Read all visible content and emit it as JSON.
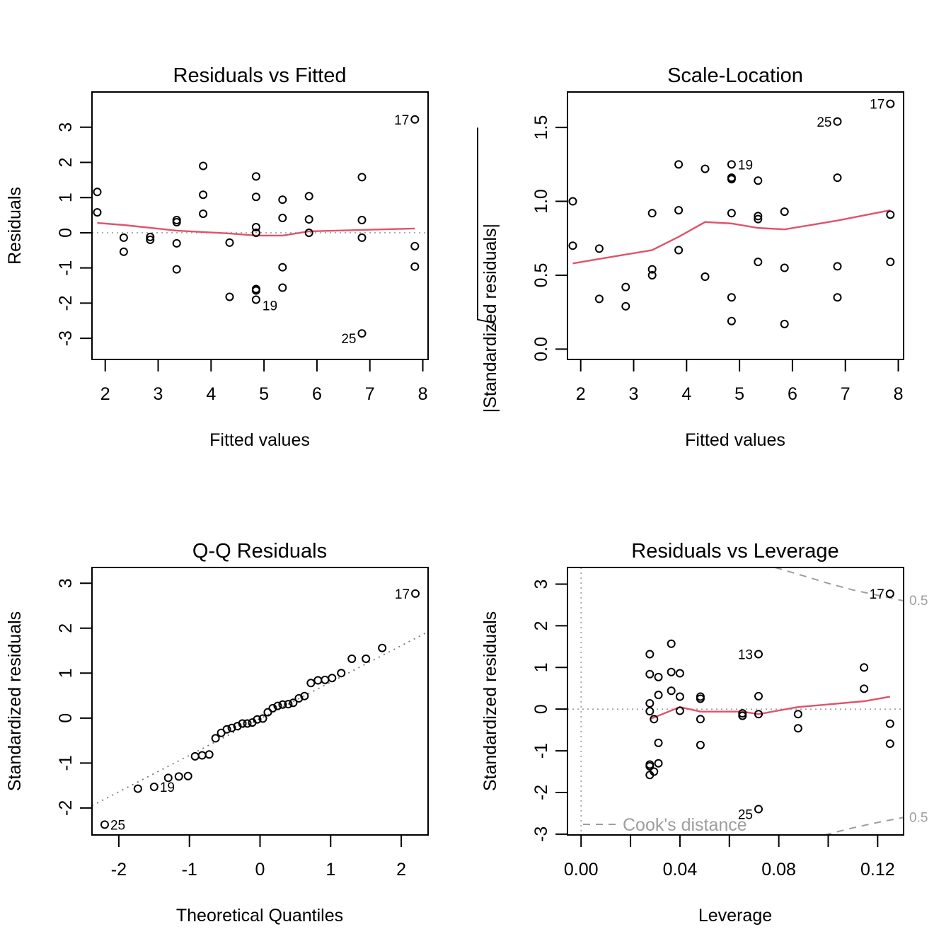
{
  "figure": {
    "layout": "2x2",
    "smoother_color": "#DF536B",
    "point_color": "#000000",
    "reference_color": "#9E9E9E"
  },
  "chart_data": [
    {
      "id": "residuals-vs-fitted",
      "type": "scatter",
      "title": "Residuals vs Fitted",
      "xlabel": "Fitted values",
      "ylabel": "Residuals",
      "xlim": [
        1.75,
        8.1
      ],
      "ylim": [
        -3.6,
        4.0
      ],
      "xticks": [
        2,
        3,
        4,
        5,
        6,
        7,
        8
      ],
      "yticks": [
        -3,
        -2,
        -1,
        0,
        1,
        2,
        3
      ],
      "reference_line": {
        "type": "horizontal",
        "y": 0,
        "style": "dotted"
      },
      "points": [
        {
          "x": 1.85,
          "y": 1.16
        },
        {
          "x": 1.85,
          "y": 0.58
        },
        {
          "x": 2.35,
          "y": -0.14
        },
        {
          "x": 2.35,
          "y": -0.54
        },
        {
          "x": 2.85,
          "y": -0.12
        },
        {
          "x": 2.85,
          "y": -0.2
        },
        {
          "x": 3.35,
          "y": 0.36
        },
        {
          "x": 3.35,
          "y": 0.3
        },
        {
          "x": 3.35,
          "y": -0.3
        },
        {
          "x": 3.35,
          "y": -1.04
        },
        {
          "x": 3.85,
          "y": 1.9
        },
        {
          "x": 3.85,
          "y": 1.08
        },
        {
          "x": 3.85,
          "y": 0.54
        },
        {
          "x": 4.35,
          "y": -0.28
        },
        {
          "x": 4.35,
          "y": -1.82
        },
        {
          "x": 4.85,
          "y": 1.6
        },
        {
          "x": 4.85,
          "y": 1.02
        },
        {
          "x": 4.85,
          "y": 0.16
        },
        {
          "x": 4.85,
          "y": 0.0
        },
        {
          "x": 4.85,
          "y": -1.6
        },
        {
          "x": 4.85,
          "y": -1.64
        },
        {
          "x": 4.85,
          "y": -1.9,
          "label": "19"
        },
        {
          "x": 5.35,
          "y": 0.94
        },
        {
          "x": 5.35,
          "y": 0.42
        },
        {
          "x": 5.35,
          "y": -0.98
        },
        {
          "x": 5.35,
          "y": -1.56
        },
        {
          "x": 5.85,
          "y": 1.04
        },
        {
          "x": 5.85,
          "y": 0.38
        },
        {
          "x": 5.85,
          "y": 0.0
        },
        {
          "x": 6.85,
          "y": 1.58
        },
        {
          "x": 6.85,
          "y": 0.36
        },
        {
          "x": 6.85,
          "y": -0.14
        },
        {
          "x": 6.85,
          "y": -2.86,
          "label": "25"
        },
        {
          "x": 7.85,
          "y": 3.22,
          "label": "17"
        },
        {
          "x": 7.85,
          "y": -0.38
        },
        {
          "x": 7.85,
          "y": -0.96
        }
      ],
      "smoother": [
        {
          "x": 1.85,
          "y": 0.28
        },
        {
          "x": 2.35,
          "y": 0.22
        },
        {
          "x": 2.85,
          "y": 0.14
        },
        {
          "x": 3.35,
          "y": 0.06
        },
        {
          "x": 3.85,
          "y": 0.02
        },
        {
          "x": 4.35,
          "y": -0.02
        },
        {
          "x": 4.85,
          "y": -0.08
        },
        {
          "x": 5.35,
          "y": -0.08
        },
        {
          "x": 5.85,
          "y": 0.04
        },
        {
          "x": 6.85,
          "y": 0.08
        },
        {
          "x": 7.85,
          "y": 0.12
        }
      ]
    },
    {
      "id": "scale-location",
      "type": "scatter",
      "title": "Scale-Location",
      "xlabel": "Fitted values",
      "ylabel": "√|Standardized residuals|",
      "xlim": [
        1.75,
        8.1
      ],
      "ylim": [
        -0.07,
        1.74
      ],
      "xticks": [
        2,
        3,
        4,
        5,
        6,
        7,
        8
      ],
      "yticks": [
        "0.0",
        "0.5",
        "1.0",
        "1.5"
      ],
      "points": [
        {
          "x": 1.85,
          "y": 1.0
        },
        {
          "x": 1.85,
          "y": 0.7
        },
        {
          "x": 2.35,
          "y": 0.68
        },
        {
          "x": 2.35,
          "y": 0.34
        },
        {
          "x": 2.85,
          "y": 0.42
        },
        {
          "x": 2.85,
          "y": 0.29
        },
        {
          "x": 3.35,
          "y": 0.92
        },
        {
          "x": 3.35,
          "y": 0.54
        },
        {
          "x": 3.35,
          "y": 0.5
        },
        {
          "x": 3.85,
          "y": 1.25
        },
        {
          "x": 3.85,
          "y": 0.94
        },
        {
          "x": 3.85,
          "y": 0.67
        },
        {
          "x": 4.35,
          "y": 1.22
        },
        {
          "x": 4.35,
          "y": 0.49
        },
        {
          "x": 4.85,
          "y": 1.25,
          "label": "19"
        },
        {
          "x": 4.85,
          "y": 1.16
        },
        {
          "x": 4.85,
          "y": 1.15
        },
        {
          "x": 4.85,
          "y": 0.92
        },
        {
          "x": 4.85,
          "y": 0.35
        },
        {
          "x": 4.85,
          "y": 0.19
        },
        {
          "x": 5.35,
          "y": 1.14
        },
        {
          "x": 5.35,
          "y": 0.9
        },
        {
          "x": 5.35,
          "y": 0.88
        },
        {
          "x": 5.35,
          "y": 0.59
        },
        {
          "x": 5.85,
          "y": 0.93
        },
        {
          "x": 5.85,
          "y": 0.55
        },
        {
          "x": 5.85,
          "y": 0.17
        },
        {
          "x": 6.85,
          "y": 1.54,
          "label": "25"
        },
        {
          "x": 6.85,
          "y": 1.16
        },
        {
          "x": 6.85,
          "y": 0.56
        },
        {
          "x": 6.85,
          "y": 0.35
        },
        {
          "x": 7.85,
          "y": 1.66,
          "label": "17"
        },
        {
          "x": 7.85,
          "y": 0.91
        },
        {
          "x": 7.85,
          "y": 0.59
        }
      ],
      "smoother": [
        {
          "x": 1.85,
          "y": 0.58
        },
        {
          "x": 2.35,
          "y": 0.61
        },
        {
          "x": 2.85,
          "y": 0.64
        },
        {
          "x": 3.35,
          "y": 0.67
        },
        {
          "x": 3.85,
          "y": 0.76
        },
        {
          "x": 4.35,
          "y": 0.86
        },
        {
          "x": 4.85,
          "y": 0.85
        },
        {
          "x": 5.35,
          "y": 0.82
        },
        {
          "x": 5.85,
          "y": 0.81
        },
        {
          "x": 6.85,
          "y": 0.87
        },
        {
          "x": 7.85,
          "y": 0.94
        }
      ]
    },
    {
      "id": "qq-residuals",
      "type": "scatter",
      "title": "Q-Q Residuals",
      "xlabel": "Theoretical Quantiles",
      "ylabel": "Standardized residuals",
      "xlim": [
        -2.38,
        2.38
      ],
      "ylim": [
        -2.6,
        3.35
      ],
      "xticks": [
        -2,
        -1,
        0,
        1,
        2
      ],
      "yticks": [
        -2,
        -1,
        0,
        1,
        2,
        3
      ],
      "reference_line": {
        "type": "qqline",
        "points": [
          {
            "x": -2.38,
            "y": -1.95
          },
          {
            "x": 2.38,
            "y": 1.92
          }
        ],
        "style": "dotted"
      },
      "points": [
        {
          "x": -2.2,
          "y": -2.37,
          "label": "25"
        },
        {
          "x": -1.73,
          "y": -1.57
        },
        {
          "x": -1.5,
          "y": -1.53,
          "label": "19"
        },
        {
          "x": -1.3,
          "y": -1.33
        },
        {
          "x": -1.15,
          "y": -1.3
        },
        {
          "x": -1.02,
          "y": -1.29
        },
        {
          "x": -0.92,
          "y": -0.85
        },
        {
          "x": -0.82,
          "y": -0.83
        },
        {
          "x": -0.72,
          "y": -0.81
        },
        {
          "x": -0.63,
          "y": -0.45
        },
        {
          "x": -0.55,
          "y": -0.33
        },
        {
          "x": -0.47,
          "y": -0.25
        },
        {
          "x": -0.4,
          "y": -0.22
        },
        {
          "x": -0.32,
          "y": -0.18
        },
        {
          "x": -0.25,
          "y": -0.12
        },
        {
          "x": -0.18,
          "y": -0.12
        },
        {
          "x": -0.11,
          "y": -0.1
        },
        {
          "x": -0.04,
          "y": -0.03
        },
        {
          "x": 0.04,
          "y": -0.01
        },
        {
          "x": 0.11,
          "y": 0.13
        },
        {
          "x": 0.18,
          "y": 0.22
        },
        {
          "x": 0.25,
          "y": 0.27
        },
        {
          "x": 0.32,
          "y": 0.3
        },
        {
          "x": 0.4,
          "y": 0.31
        },
        {
          "x": 0.47,
          "y": 0.34
        },
        {
          "x": 0.55,
          "y": 0.44
        },
        {
          "x": 0.63,
          "y": 0.49
        },
        {
          "x": 0.72,
          "y": 0.78
        },
        {
          "x": 0.82,
          "y": 0.84
        },
        {
          "x": 0.92,
          "y": 0.85
        },
        {
          "x": 1.02,
          "y": 0.89
        },
        {
          "x": 1.15,
          "y": 1.0
        },
        {
          "x": 1.3,
          "y": 1.32
        },
        {
          "x": 1.5,
          "y": 1.32
        },
        {
          "x": 1.73,
          "y": 1.56
        },
        {
          "x": 2.2,
          "y": 2.77,
          "label": "17"
        }
      ]
    },
    {
      "id": "residuals-vs-leverage",
      "type": "scatter",
      "title": "Residuals vs Leverage",
      "xlabel": "Leverage",
      "ylabel": "Standardized residuals",
      "xlim": [
        -0.0055,
        0.1305
      ],
      "ylim": [
        -3.02,
        3.4
      ],
      "xticks": [
        "0.00",
        "",
        "0.04",
        "",
        "0.08",
        "",
        "0.12"
      ],
      "xtick_values": [
        0.0,
        0.02,
        0.04,
        0.06,
        0.08,
        0.1,
        0.12
      ],
      "yticks": [
        -3,
        -2,
        -1,
        0,
        1,
        2,
        3
      ],
      "reference_lines": [
        {
          "type": "horizontal",
          "y": 0,
          "style": "dotted"
        },
        {
          "type": "vertical",
          "x": 0,
          "style": "dotted"
        }
      ],
      "cooks_distance": {
        "legend": "Cook's distance",
        "contour_label": "0.5",
        "upper": [
          {
            "x": 0.0785,
            "y": 3.4
          },
          {
            "x": 0.09,
            "y": 3.2
          },
          {
            "x": 0.1,
            "y": 3.02
          },
          {
            "x": 0.11,
            "y": 2.86
          },
          {
            "x": 0.1305,
            "y": 2.6
          }
        ],
        "lower": [
          {
            "x": 0.0985,
            "y": -3.02
          },
          {
            "x": 0.11,
            "y": -2.85
          },
          {
            "x": 0.12,
            "y": -2.72
          },
          {
            "x": 0.1305,
            "y": -2.6
          }
        ]
      },
      "points": [
        {
          "x": 0.0278,
          "y": 1.32
        },
        {
          "x": 0.0278,
          "y": 0.84
        },
        {
          "x": 0.0278,
          "y": 0.14
        },
        {
          "x": 0.0278,
          "y": -0.05
        },
        {
          "x": 0.0278,
          "y": -1.33
        },
        {
          "x": 0.0278,
          "y": -1.37
        },
        {
          "x": 0.0278,
          "y": -1.58
        },
        {
          "x": 0.0295,
          "y": -0.24
        },
        {
          "x": 0.0295,
          "y": -1.5
        },
        {
          "x": 0.0313,
          "y": 0.77
        },
        {
          "x": 0.0313,
          "y": 0.34
        },
        {
          "x": 0.0313,
          "y": -0.81
        },
        {
          "x": 0.0313,
          "y": -1.3
        },
        {
          "x": 0.0365,
          "y": 1.57
        },
        {
          "x": 0.0365,
          "y": 0.89
        },
        {
          "x": 0.0365,
          "y": 0.44
        },
        {
          "x": 0.04,
          "y": 0.86
        },
        {
          "x": 0.04,
          "y": 0.3
        },
        {
          "x": 0.04,
          "y": -0.04
        },
        {
          "x": 0.0483,
          "y": 0.3
        },
        {
          "x": 0.0483,
          "y": 0.25
        },
        {
          "x": 0.0483,
          "y": -0.24
        },
        {
          "x": 0.0483,
          "y": -0.86
        },
        {
          "x": 0.0653,
          "y": -0.1
        },
        {
          "x": 0.0653,
          "y": -0.16
        },
        {
          "x": 0.0718,
          "y": 1.32,
          "label": "13"
        },
        {
          "x": 0.0718,
          "y": 0.31
        },
        {
          "x": 0.0718,
          "y": -0.12
        },
        {
          "x": 0.0718,
          "y": -2.4,
          "label": "25"
        },
        {
          "x": 0.0878,
          "y": -0.12
        },
        {
          "x": 0.0878,
          "y": -0.46
        },
        {
          "x": 0.1145,
          "y": 1.0
        },
        {
          "x": 0.1145,
          "y": 0.49
        },
        {
          "x": 0.125,
          "y": 2.77,
          "label": "17"
        },
        {
          "x": 0.125,
          "y": -0.35
        },
        {
          "x": 0.125,
          "y": -0.83
        }
      ],
      "smoother": [
        {
          "x": 0.0278,
          "y": -0.24
        },
        {
          "x": 0.04,
          "y": 0.05
        },
        {
          "x": 0.0483,
          "y": -0.06
        },
        {
          "x": 0.0653,
          "y": -0.06
        },
        {
          "x": 0.0718,
          "y": -0.12
        },
        {
          "x": 0.0878,
          "y": 0.05
        },
        {
          "x": 0.1145,
          "y": 0.19
        },
        {
          "x": 0.125,
          "y": 0.3
        }
      ]
    }
  ]
}
